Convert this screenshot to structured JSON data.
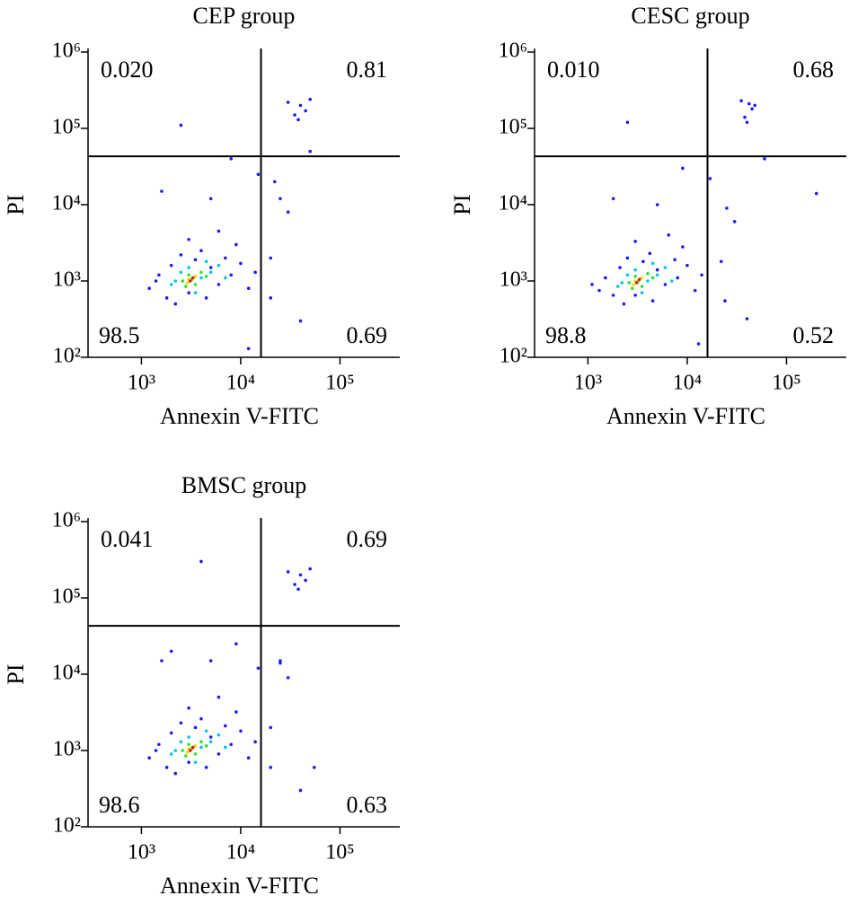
{
  "chart_data": [
    {
      "type": "scatter",
      "title": "CEP group",
      "x_label": "Annexin V-FITC",
      "y_label": "PI",
      "log_x": true,
      "log_y": true,
      "xlim": [
        290,
        400000
      ],
      "ylim": [
        100,
        1000000
      ],
      "xticks": [
        {
          "value": 1000,
          "label": "10³"
        },
        {
          "value": 10000,
          "label": "10⁴"
        },
        {
          "value": 100000,
          "label": "10⁵"
        }
      ],
      "yticks": [
        {
          "value": 100,
          "label": "10²"
        },
        {
          "value": 1000,
          "label": "10³"
        },
        {
          "value": 10000,
          "label": "10⁴"
        },
        {
          "value": 100000,
          "label": "10⁵"
        },
        {
          "value": 1000000,
          "label": "10⁶"
        }
      ],
      "gates": {
        "x": 16000,
        "y": 43000
      },
      "quadrants": {
        "values": [
          0.02,
          0.81,
          98.5,
          0.69
        ],
        "value_labels": [
          "0.020",
          "0.81",
          "98.5",
          "0.69"
        ]
      },
      "point_layers": [
        {
          "color": "#1a1aff",
          "x": [
            1200,
            1500,
            1800,
            2000,
            2500,
            3000,
            3500,
            4000,
            5000,
            6000,
            7000,
            8000,
            10000,
            12000,
            14000,
            1400,
            2200,
            4500,
            9000,
            6000,
            3000,
            20000,
            25000,
            30000,
            35000,
            40000,
            45000,
            30000,
            50000,
            38000,
            50000,
            15000,
            5000,
            8000,
            2500,
            20000,
            40000,
            12000,
            1600,
            22000
          ],
          "y": [
            800,
            1200,
            600,
            1600,
            2200,
            700,
            1900,
            2500,
            1500,
            900,
            2000,
            1200,
            1700,
            800,
            1300,
            1000,
            500,
            600,
            3000,
            4500,
            3500,
            2000,
            12000,
            8000,
            150000,
            200000,
            170000,
            220000,
            240000,
            130000,
            50000,
            25000,
            12000,
            40000,
            110000,
            600,
            300,
            130,
            15000,
            20000
          ]
        },
        {
          "color": "#00c8e6",
          "x": [
            2000,
            2500,
            3000,
            4000,
            5000,
            3500,
            6000,
            2200,
            4500,
            7000
          ],
          "y": [
            900,
            1300,
            1500,
            1100,
            1300,
            700,
            1600,
            1000,
            1800,
            1100
          ]
        },
        {
          "color": "#2ee62e",
          "x": [
            2600,
            3000,
            3500,
            4000,
            3200,
            2800,
            4500
          ],
          "y": [
            1000,
            1200,
            900,
            1300,
            1050,
            850,
            1150
          ]
        },
        {
          "color": "#f0e000",
          "x": [
            3000,
            3500,
            2900
          ],
          "y": [
            1050,
            1150,
            950
          ]
        },
        {
          "color": "#e61a1a",
          "x": [
            3100,
            3300
          ],
          "y": [
            1000,
            1100
          ]
        }
      ]
    },
    {
      "type": "scatter",
      "title": "CESC group",
      "x_label": "Annexin V-FITC",
      "y_label": "PI",
      "log_x": true,
      "log_y": true,
      "xlim": [
        290,
        400000
      ],
      "ylim": [
        100,
        1000000
      ],
      "xticks": [
        {
          "value": 1000,
          "label": "10³"
        },
        {
          "value": 10000,
          "label": "10⁴"
        },
        {
          "value": 100000,
          "label": "10⁵"
        }
      ],
      "yticks": [
        {
          "value": 100,
          "label": "10²"
        },
        {
          "value": 1000,
          "label": "10³"
        },
        {
          "value": 10000,
          "label": "10⁴"
        },
        {
          "value": 100000,
          "label": "10⁵"
        },
        {
          "value": 1000000,
          "label": "10⁶"
        }
      ],
      "gates": {
        "x": 16000,
        "y": 43000
      },
      "quadrants": {
        "values": [
          0.01,
          0.68,
          98.8,
          0.52
        ],
        "value_labels": [
          "0.010",
          "0.68",
          "98.8",
          "0.52"
        ]
      },
      "point_layers": [
        {
          "color": "#1a1aff",
          "x": [
            1300,
            1500,
            1800,
            2100,
            2500,
            3000,
            3600,
            4200,
            5000,
            6000,
            7500,
            8000,
            10000,
            12000,
            14000,
            1100,
            2300,
            4500,
            9000,
            6500,
            3000,
            22000,
            25000,
            30000,
            38000,
            42000,
            45000,
            35000,
            48000,
            40000,
            60000,
            17000,
            5000,
            9000,
            2500,
            24000,
            40000,
            13000,
            1800,
            200000
          ],
          "y": [
            750,
            1100,
            650,
            1500,
            2000,
            650,
            1800,
            2300,
            1400,
            900,
            1900,
            1100,
            1600,
            750,
            1200,
            900,
            500,
            550,
            2800,
            4000,
            3300,
            1800,
            9000,
            6000,
            140000,
            210000,
            180000,
            230000,
            200000,
            120000,
            40000,
            22000,
            10000,
            30000,
            120000,
            550,
            320,
            150,
            12000,
            14000
          ]
        },
        {
          "color": "#00c8e6",
          "x": [
            2000,
            2500,
            3000,
            4000,
            5000,
            3500,
            6000,
            2200,
            4500,
            7000
          ],
          "y": [
            850,
            1200,
            1400,
            1000,
            1200,
            700,
            1500,
            950,
            1700,
            1000
          ]
        },
        {
          "color": "#2ee62e",
          "x": [
            2600,
            3000,
            3500,
            4000,
            3200,
            2800,
            4500
          ],
          "y": [
            950,
            1150,
            850,
            1250,
            1000,
            800,
            1100
          ]
        },
        {
          "color": "#f0e000",
          "x": [
            3000,
            3500,
            2900
          ],
          "y": [
            1000,
            1100,
            900
          ]
        },
        {
          "color": "#e61a1a",
          "x": [
            3100,
            3300
          ],
          "y": [
            950,
            1050
          ]
        }
      ]
    },
    {
      "type": "scatter",
      "title": "BMSC group",
      "x_label": "Annexin V-FITC",
      "y_label": "PI",
      "log_x": true,
      "log_y": true,
      "xlim": [
        290,
        400000
      ],
      "ylim": [
        100,
        1000000
      ],
      "xticks": [
        {
          "value": 1000,
          "label": "10³"
        },
        {
          "value": 10000,
          "label": "10⁴"
        },
        {
          "value": 100000,
          "label": "10⁵"
        }
      ],
      "yticks": [
        {
          "value": 100,
          "label": "10²"
        },
        {
          "value": 1000,
          "label": "10³"
        },
        {
          "value": 10000,
          "label": "10⁴"
        },
        {
          "value": 100000,
          "label": "10⁵"
        },
        {
          "value": 1000000,
          "label": "10⁶"
        }
      ],
      "gates": {
        "x": 16000,
        "y": 43000
      },
      "quadrants": {
        "values": [
          0.041,
          0.69,
          98.6,
          0.63
        ],
        "value_labels": [
          "0.041",
          "0.69",
          "98.6",
          "0.63"
        ]
      },
      "point_layers": [
        {
          "color": "#1a1aff",
          "x": [
            1200,
            1500,
            1800,
            2000,
            2500,
            3000,
            3500,
            4000,
            5000,
            6000,
            7000,
            8000,
            10000,
            12000,
            14000,
            1400,
            2200,
            4500,
            9000,
            6000,
            3000,
            20000,
            25000,
            30000,
            35000,
            40000,
            45000,
            30000,
            50000,
            38000,
            2000,
            15000,
            5000,
            9000,
            4000,
            20000,
            40000,
            25000,
            1600,
            55000
          ],
          "y": [
            800,
            1200,
            600,
            1700,
            2300,
            700,
            2000,
            2600,
            1500,
            900,
            2100,
            1200,
            1800,
            800,
            1300,
            1000,
            500,
            600,
            3200,
            5000,
            3600,
            2000,
            15000,
            9000,
            150000,
            200000,
            170000,
            220000,
            240000,
            130000,
            20000,
            12000,
            15000,
            25000,
            300000,
            600,
            300,
            14000,
            15000,
            600
          ]
        },
        {
          "color": "#00c8e6",
          "x": [
            2000,
            2500,
            3000,
            4000,
            5000,
            3500,
            6000,
            2200,
            4500,
            7000
          ],
          "y": [
            900,
            1300,
            1500,
            1100,
            1300,
            700,
            1600,
            1000,
            1800,
            1100
          ]
        },
        {
          "color": "#2ee62e",
          "x": [
            2600,
            3000,
            3500,
            4000,
            3200,
            2800,
            4500
          ],
          "y": [
            1000,
            1200,
            900,
            1300,
            1050,
            850,
            1150
          ]
        },
        {
          "color": "#f0e000",
          "x": [
            3000,
            3500,
            2900
          ],
          "y": [
            1050,
            1150,
            950
          ]
        },
        {
          "color": "#e61a1a",
          "x": [
            3100,
            3300
          ],
          "y": [
            1000,
            1100
          ]
        }
      ]
    }
  ]
}
